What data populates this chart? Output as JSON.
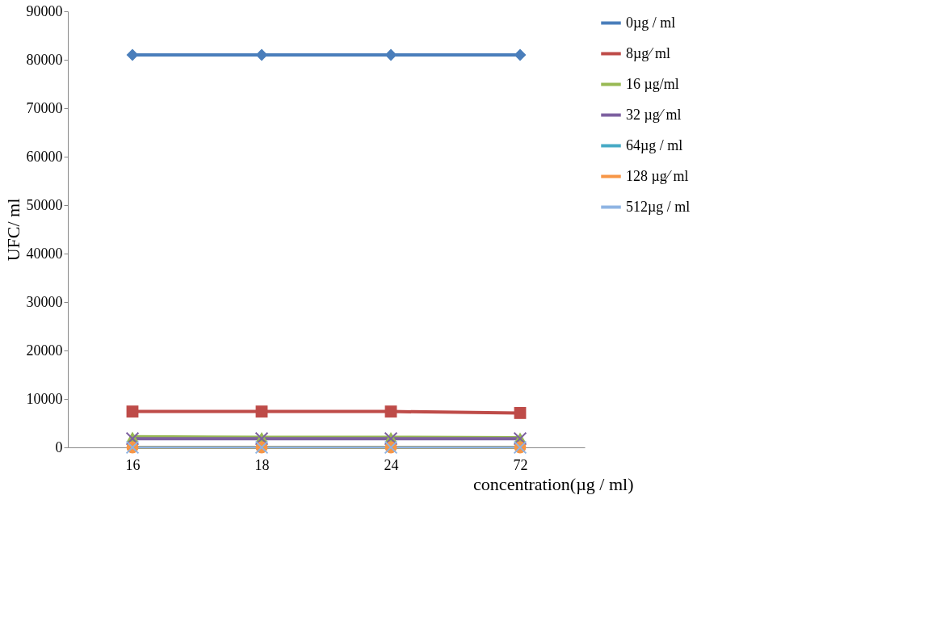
{
  "chart_data": {
    "type": "line",
    "xlabel": "concentration(µg / ml)",
    "ylabel": "UFC/ ml",
    "categories": [
      "16",
      "18",
      "24",
      "72"
    ],
    "ylim": [
      0,
      90000
    ],
    "yticks": [
      0,
      10000,
      20000,
      30000,
      40000,
      50000,
      60000,
      70000,
      80000,
      90000
    ],
    "grid": false,
    "legend": "right",
    "series": [
      {
        "name": "0µg / ml",
        "color": "#4a7ebb",
        "marker": "diamond",
        "values": [
          81000,
          81000,
          81000,
          81000
        ]
      },
      {
        "name": "8µg⁄ ml",
        "color": "#be4b48",
        "marker": "square",
        "values": [
          7400,
          7400,
          7400,
          7100
        ]
      },
      {
        "name": "16 µg/ml",
        "color": "#98b954",
        "marker": "triangle",
        "values": [
          2200,
          2100,
          2100,
          2000
        ]
      },
      {
        "name": " 32 µg⁄ ml",
        "color": "#7d60a0",
        "marker": "cross",
        "values": [
          1800,
          1800,
          1800,
          1800
        ]
      },
      {
        "name": "64µg / ml",
        "color": "#46aac5",
        "marker": "star",
        "values": [
          0,
          0,
          0,
          0
        ]
      },
      {
        "name": " 128 µg⁄ ml",
        "color": "#f79646",
        "marker": "circle",
        "values": [
          0,
          0,
          0,
          0
        ]
      },
      {
        "name": "512µg / ml",
        "color": "#8eb4e3",
        "marker": "cross",
        "values": [
          0,
          0,
          0,
          0
        ]
      }
    ]
  }
}
